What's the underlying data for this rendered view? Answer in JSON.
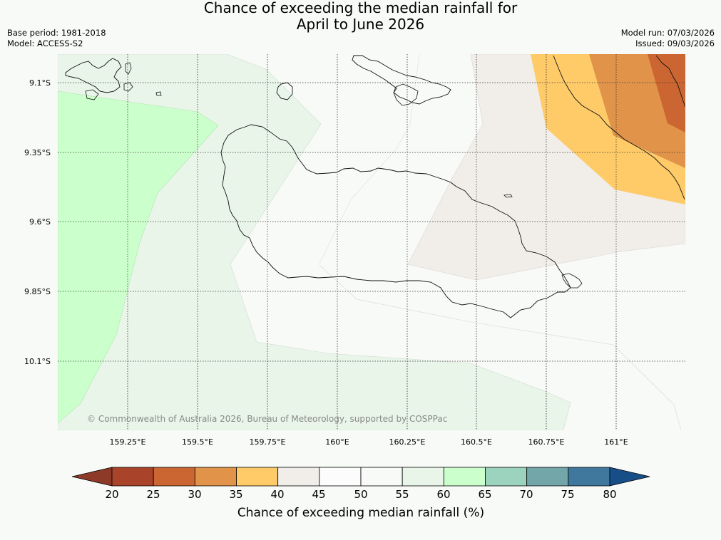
{
  "title": {
    "line1": "Chance of exceeding the median rainfall for",
    "line2": "April to June 2026"
  },
  "meta": {
    "base_period": "Base period: 1981-2018",
    "model": "Model: ACCESS-S2",
    "model_run": "Model run: 07/03/2026",
    "issued": "Issued: 09/03/2026"
  },
  "map": {
    "lat_ticks": [
      "9.1°S",
      "9.35°S",
      "9.6°S",
      "9.85°S",
      "10.1°S"
    ],
    "lon_ticks": [
      "159.25°E",
      "159.5°E",
      "159.75°E",
      "160°E",
      "160.25°E",
      "160.5°E",
      "160.75°E",
      "161°E"
    ],
    "copyright": "© Commonwealth of Australia 2026, Bureau of Meteorology, supported by COSPPac"
  },
  "colorbar": {
    "labels": [
      "20",
      "25",
      "30",
      "35",
      "40",
      "45",
      "50",
      "55",
      "60",
      "65",
      "70",
      "75",
      "80"
    ],
    "colors": [
      "#a9432a",
      "#cb6632",
      "#e09349",
      "#fecb68",
      "#f1ede9",
      "#fbfcfb",
      "#f8faf7",
      "#e8f5e8",
      "#cbffcc",
      "#9bd3be",
      "#72a6a8",
      "#3f789c"
    ],
    "under_color": "#8e3a28",
    "over_color": "#174e88",
    "title": "Chance of exceeding median rainfall (%)"
  }
}
